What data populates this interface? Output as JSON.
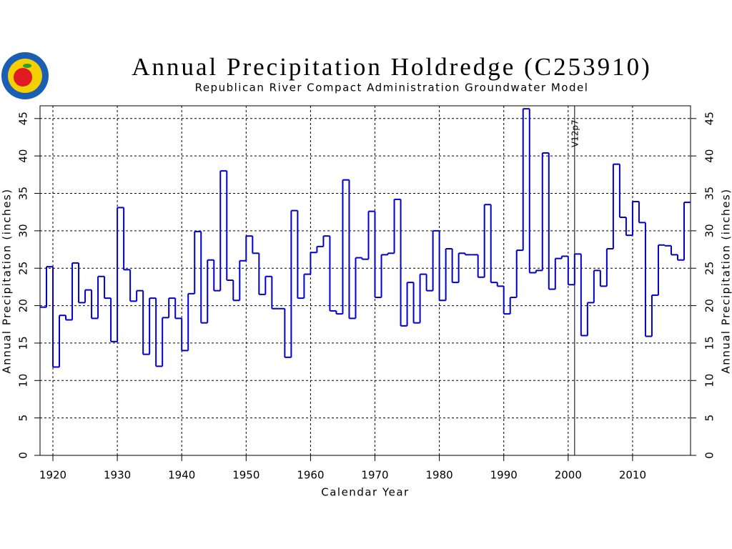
{
  "chart_data": {
    "type": "step",
    "title": "Annual Precipitation Holdredge (C253910)",
    "subtitle": "Republican River Compact Administration Groundwater Model",
    "xlabel": "Calendar Year",
    "ylabel": "Annual Precipitation (inches)",
    "color": "#0000cc",
    "grid": true,
    "xlim": [
      1918,
      2019
    ],
    "xticks": [
      1920,
      1930,
      1940,
      1950,
      1960,
      1970,
      1980,
      1990,
      2000,
      2010
    ],
    "ylim": [
      0,
      46.7
    ],
    "yticks": [
      0,
      5,
      10,
      15,
      20,
      25,
      30,
      35,
      40,
      45
    ],
    "annotation": {
      "x": 2001,
      "label": "V12p7"
    },
    "x": [
      1918,
      1919,
      1920,
      1921,
      1922,
      1923,
      1924,
      1925,
      1926,
      1927,
      1928,
      1929,
      1930,
      1931,
      1932,
      1933,
      1934,
      1935,
      1936,
      1937,
      1938,
      1939,
      1940,
      1941,
      1942,
      1943,
      1944,
      1945,
      1946,
      1947,
      1948,
      1949,
      1950,
      1951,
      1952,
      1953,
      1954,
      1955,
      1956,
      1957,
      1958,
      1959,
      1960,
      1961,
      1962,
      1963,
      1964,
      1965,
      1966,
      1967,
      1968,
      1969,
      1970,
      1971,
      1972,
      1973,
      1974,
      1975,
      1976,
      1977,
      1978,
      1979,
      1980,
      1981,
      1982,
      1983,
      1984,
      1985,
      1986,
      1987,
      1988,
      1989,
      1990,
      1991,
      1992,
      1993,
      1994,
      1995,
      1996,
      1997,
      1998,
      1999,
      2000,
      2001,
      2002,
      2003,
      2004,
      2005,
      2006,
      2007,
      2008,
      2009,
      2010,
      2011,
      2012,
      2013,
      2014,
      2015,
      2016,
      2017,
      2018
    ],
    "values": [
      19.8,
      25.2,
      11.8,
      18.7,
      18.1,
      25.7,
      20.4,
      22.1,
      18.3,
      23.9,
      21.0,
      15.2,
      33.1,
      24.8,
      20.6,
      22.0,
      13.5,
      21.0,
      11.9,
      18.4,
      21.0,
      18.3,
      14.0,
      21.6,
      29.9,
      17.7,
      26.1,
      22.0,
      38.0,
      23.4,
      20.7,
      26.0,
      29.3,
      27.0,
      21.5,
      23.9,
      19.6,
      19.6,
      13.1,
      32.7,
      21.0,
      24.2,
      27.1,
      27.9,
      29.3,
      19.3,
      18.9,
      36.8,
      18.3,
      26.4,
      26.2,
      32.6,
      21.1,
      26.8,
      27.0,
      34.2,
      17.3,
      23.1,
      17.7,
      24.2,
      22.0,
      30.0,
      20.7,
      27.6,
      23.1,
      27.0,
      26.8,
      26.8,
      23.8,
      33.5,
      23.1,
      22.6,
      18.9,
      21.1,
      27.4,
      46.3,
      24.4,
      24.7,
      40.4,
      22.2,
      26.3,
      26.6,
      22.8,
      26.9,
      16.0,
      20.4,
      24.7,
      22.6,
      27.6,
      38.9,
      31.8,
      29.4,
      33.9,
      31.1,
      15.9,
      21.4,
      28.1,
      28.0,
      26.8,
      26.1,
      33.8
    ]
  }
}
